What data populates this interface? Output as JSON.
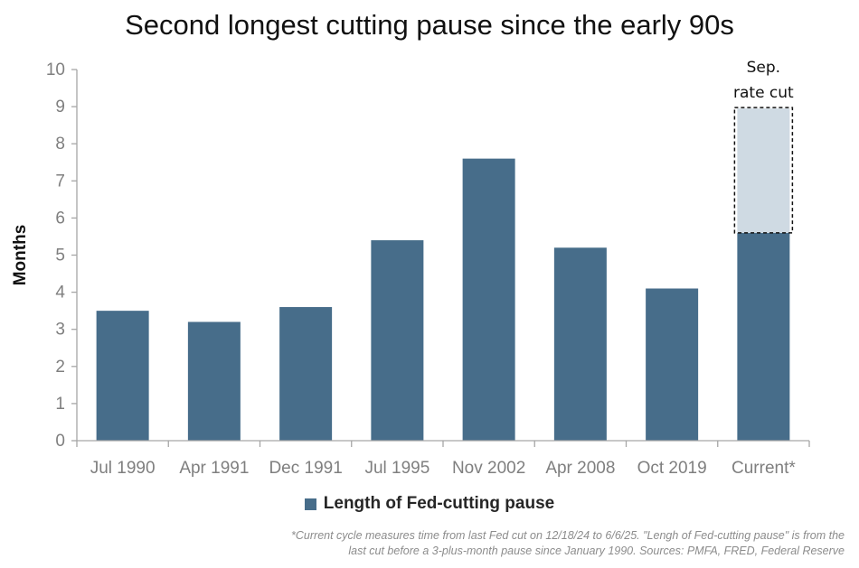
{
  "chart_data": {
    "type": "bar",
    "title": "Second longest cutting pause since the early 90s",
    "ylabel": "Months",
    "xlabel": "",
    "ylim": [
      0,
      10
    ],
    "yticks": [
      0,
      1,
      2,
      3,
      4,
      5,
      6,
      7,
      8,
      9,
      10
    ],
    "categories": [
      "Jul 1990",
      "Apr 1991",
      "Dec 1991",
      "Jul 1995",
      "Nov 2002",
      "Apr 2008",
      "Oct 2019",
      "Current*"
    ],
    "series": [
      {
        "name": "Length of Fed-cutting pause",
        "values": [
          3.5,
          3.2,
          3.6,
          5.4,
          7.6,
          5.2,
          4.1,
          5.6
        ]
      }
    ],
    "projection": {
      "category": "Current*",
      "from": 5.6,
      "to": 8.95,
      "label_line1": "Sep.",
      "label_line2": "rate cut"
    },
    "grid": false,
    "legend_position": "bottom-center",
    "colors": {
      "bar": "#476d8a",
      "projection": "#cfdae3",
      "axis": "#a6a6a6"
    }
  },
  "footnote": {
    "line1": "*Current cycle measures time from last Fed cut on 12/18/24 to 6/6/25. \"Lengh of Fed-cutting pause\" is from the",
    "line2": "last cut before a 3-plus-month pause since January 1990. Sources: PMFA, FRED, Federal Reserve"
  }
}
